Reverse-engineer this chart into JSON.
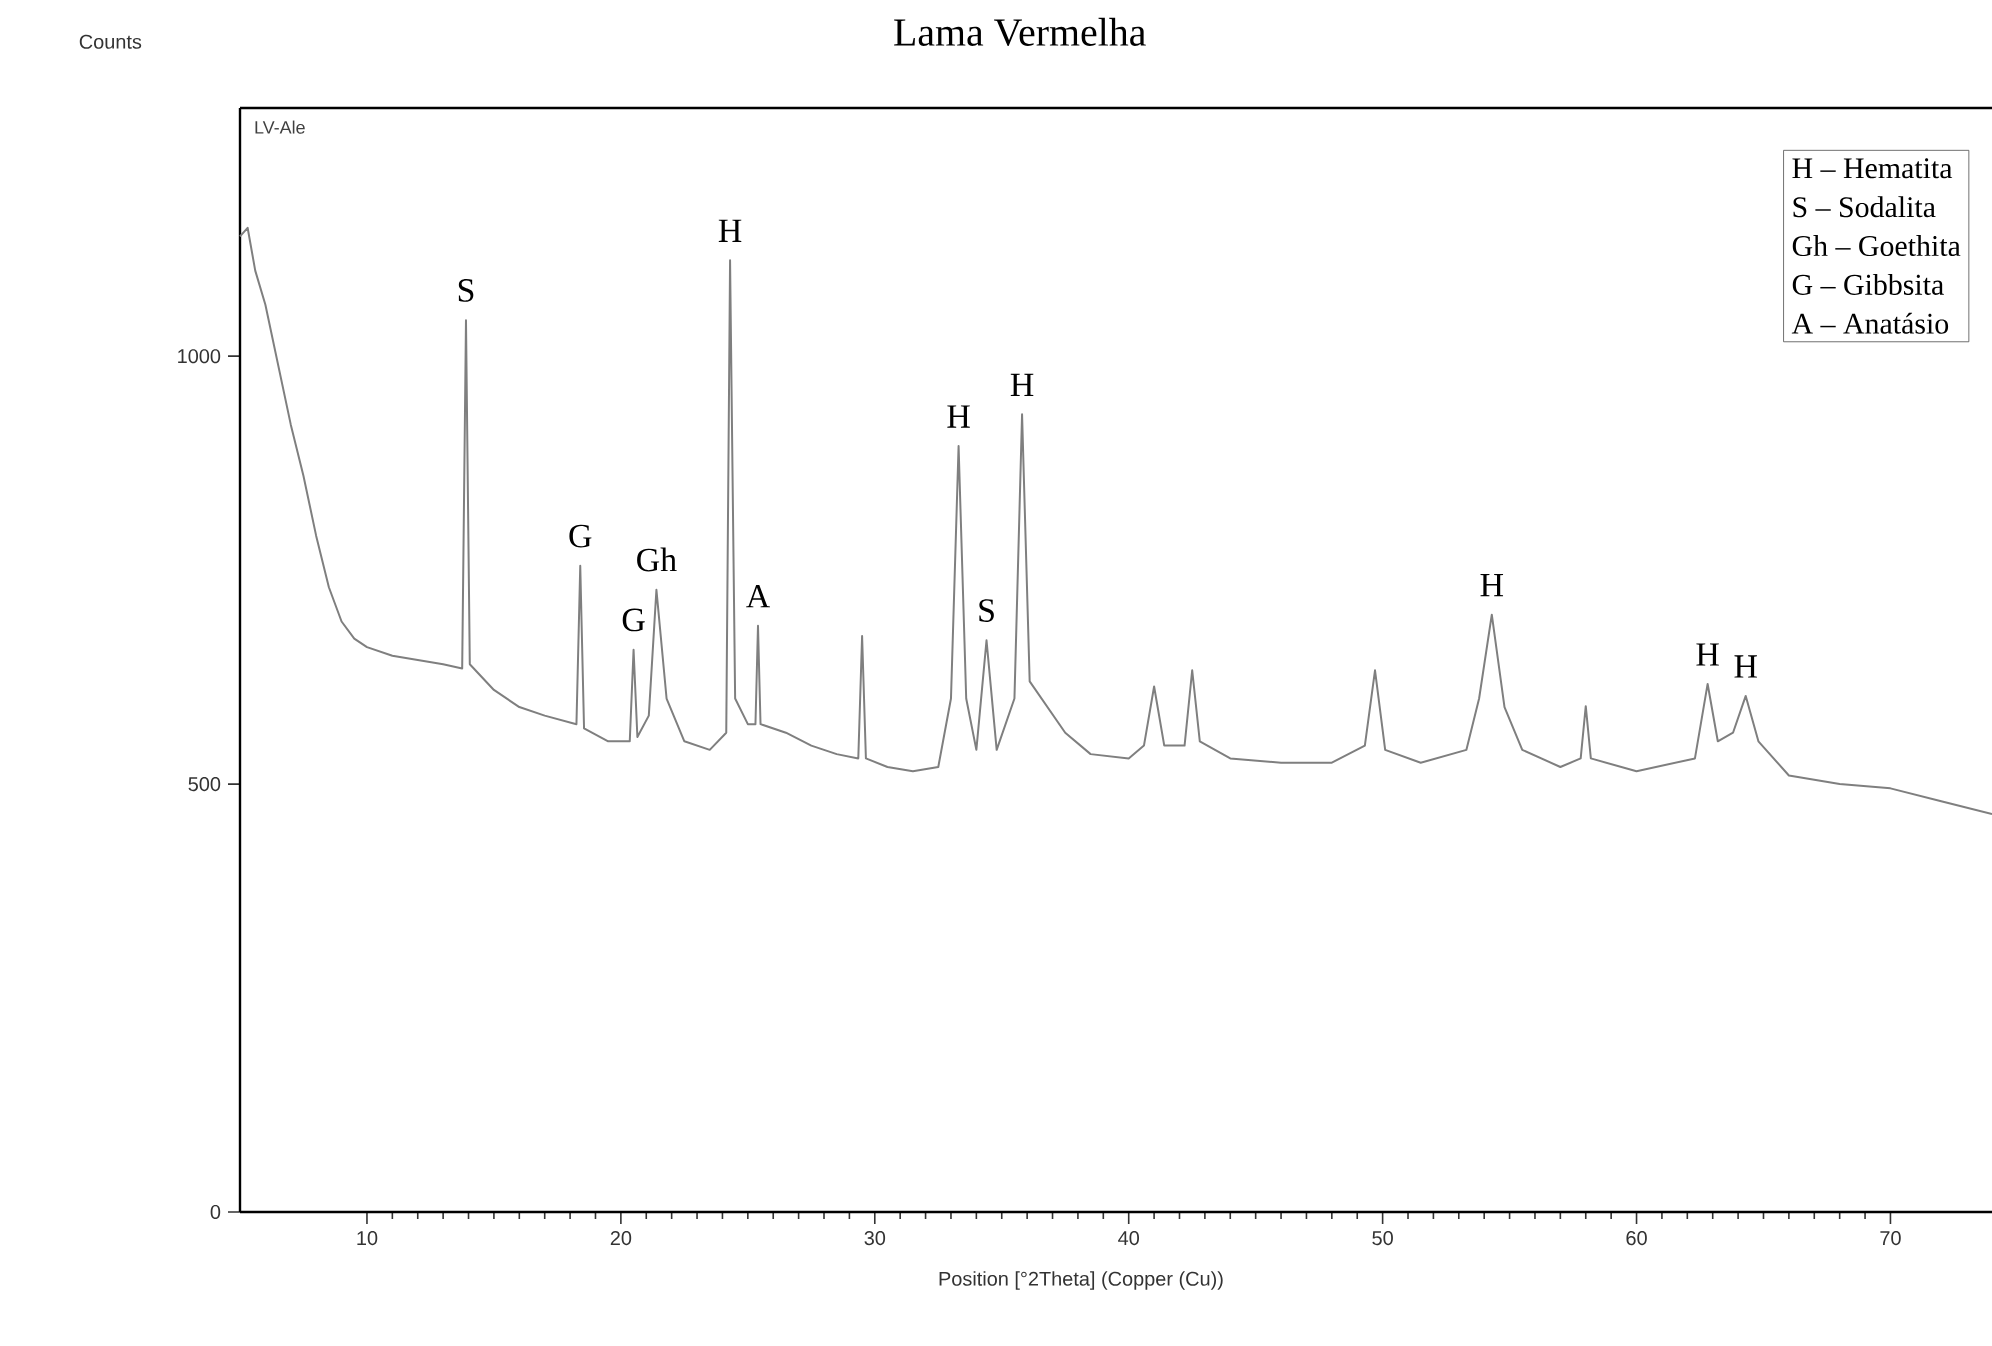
{
  "chart_data": {
    "type": "line",
    "title": "Lama Vermelha",
    "xlabel": "Position [°2Theta] (Copper (Cu))",
    "ylabel": "Counts",
    "color": "#7f7f7f",
    "x": [
      5.0,
      5.3,
      5.6,
      6.0,
      6.5,
      7.0,
      7.5,
      8.0,
      8.5,
      9.0,
      9.5,
      10.0,
      11.0,
      12.0,
      13.0,
      13.75,
      13.9,
      14.05,
      15.0,
      16.0,
      17.0,
      18.25,
      18.4,
      18.55,
      19.5,
      20.35,
      20.5,
      20.65,
      21.1,
      21.4,
      21.8,
      22.5,
      23.5,
      24.15,
      24.3,
      24.5,
      25.0,
      25.3,
      25.4,
      25.5,
      26.5,
      27.5,
      28.5,
      29.35,
      29.5,
      29.65,
      30.5,
      31.5,
      32.5,
      33.0,
      33.3,
      33.6,
      34.0,
      34.4,
      34.8,
      35.5,
      35.8,
      36.1,
      36.8,
      37.5,
      38.5,
      40.0,
      40.6,
      41.0,
      41.4,
      42.2,
      42.5,
      42.8,
      44.0,
      46.0,
      48.0,
      49.3,
      49.7,
      50.1,
      51.5,
      53.3,
      53.8,
      54.3,
      54.8,
      55.5,
      57.0,
      57.8,
      58.0,
      58.2,
      60.0,
      62.3,
      62.8,
      63.2,
      63.8,
      64.3,
      64.8,
      66.0,
      68.0,
      70.0,
      72.0,
      74.0
    ],
    "values": [
      1140,
      1150,
      1100,
      1060,
      990,
      920,
      860,
      790,
      730,
      690,
      670,
      660,
      650,
      645,
      640,
      635,
      1042,
      640,
      610,
      590,
      580,
      570,
      755,
      565,
      550,
      550,
      657,
      555,
      580,
      727,
      600,
      550,
      540,
      560,
      1112,
      600,
      570,
      570,
      685,
      570,
      560,
      545,
      535,
      530,
      673,
      530,
      520,
      515,
      520,
      600,
      895,
      600,
      540,
      668,
      540,
      600,
      932,
      620,
      590,
      560,
      535,
      530,
      545,
      614,
      545,
      545,
      633,
      550,
      530,
      525,
      525,
      545,
      633,
      540,
      525,
      540,
      600,
      698,
      590,
      540,
      520,
      530,
      591,
      530,
      515,
      530,
      617,
      550,
      560,
      603,
      550,
      510,
      500,
      495,
      480,
      465
    ],
    "xlim": [
      5,
      74
    ],
    "ylim": [
      0,
      1290
    ],
    "xticks": [
      10,
      20,
      30,
      40,
      50,
      60,
      70
    ],
    "yticks": [
      0,
      500,
      1000
    ],
    "annotations": [
      "LV-Ale",
      {
        "text": "S",
        "x": 13.9,
        "y": 1042
      },
      {
        "text": "G",
        "x": 18.4,
        "y": 755
      },
      {
        "text": "G",
        "x": 20.5,
        "y": 657
      },
      {
        "text": "Gh",
        "x": 21.4,
        "y": 727
      },
      {
        "text": "H",
        "x": 24.3,
        "y": 1112
      },
      {
        "text": "A",
        "x": 25.4,
        "y": 685
      },
      {
        "text": "H",
        "x": 33.3,
        "y": 895
      },
      {
        "text": "S",
        "x": 34.4,
        "y": 668
      },
      {
        "text": "H",
        "x": 35.8,
        "y": 932
      },
      {
        "text": "H",
        "x": 54.3,
        "y": 698
      },
      {
        "text": "H",
        "x": 62.8,
        "y": 617
      },
      {
        "text": "H",
        "x": 64.3,
        "y": 603
      },
      "H – Hematita",
      "S – Sodalita",
      "Gh – Goethita",
      "G – Gibbsita",
      "A – Anatásio"
    ]
  }
}
